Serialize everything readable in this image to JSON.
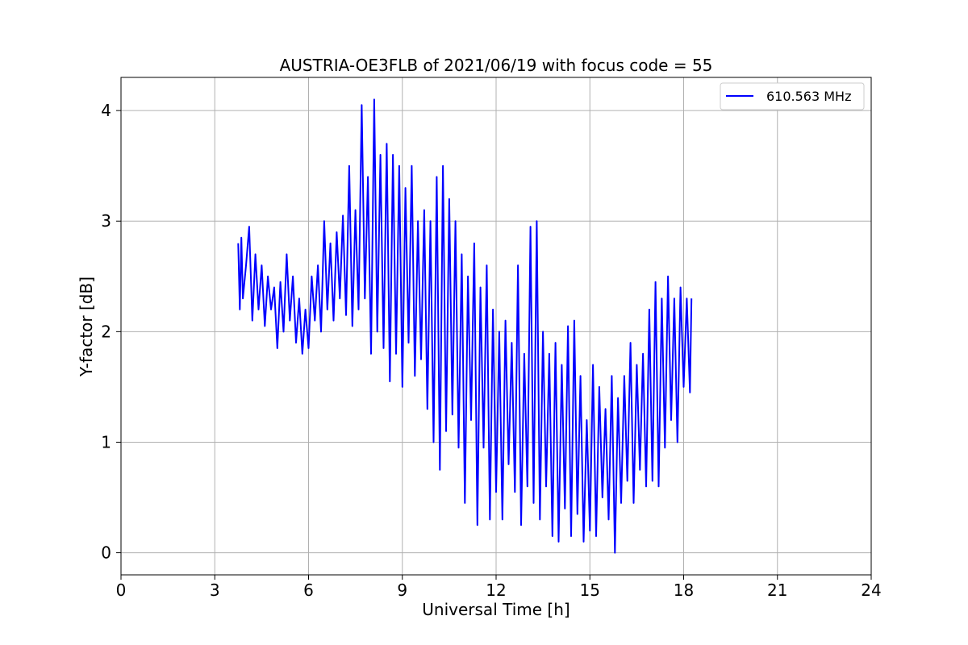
{
  "chart_data": {
    "type": "line",
    "title": "AUSTRIA-OE3FLB of 2021/06/19 with focus code = 55",
    "xlabel": "Universal Time [h]",
    "ylabel": "Y-factor [dB]",
    "xlim": [
      0,
      24
    ],
    "ylim": [
      -0.2,
      4.3
    ],
    "xticks": [
      0,
      3,
      6,
      9,
      12,
      15,
      18,
      21,
      24
    ],
    "yticks": [
      0,
      1,
      2,
      3,
      4
    ],
    "grid": true,
    "legend_position": "top-right",
    "series": [
      {
        "name": "610.563 MHz",
        "color": "#0000ff",
        "x": [
          3.75,
          3.8,
          3.85,
          3.9,
          4.0,
          4.1,
          4.2,
          4.3,
          4.4,
          4.5,
          4.6,
          4.7,
          4.8,
          4.9,
          5.0,
          5.1,
          5.2,
          5.3,
          5.4,
          5.5,
          5.6,
          5.7,
          5.8,
          5.9,
          6.0,
          6.1,
          6.2,
          6.3,
          6.4,
          6.5,
          6.6,
          6.7,
          6.8,
          6.9,
          7.0,
          7.1,
          7.2,
          7.3,
          7.4,
          7.5,
          7.6,
          7.7,
          7.8,
          7.9,
          8.0,
          8.1,
          8.2,
          8.3,
          8.4,
          8.5,
          8.6,
          8.7,
          8.8,
          8.9,
          9.0,
          9.1,
          9.2,
          9.3,
          9.4,
          9.5,
          9.6,
          9.7,
          9.8,
          9.9,
          10.0,
          10.1,
          10.2,
          10.3,
          10.4,
          10.5,
          10.6,
          10.7,
          10.8,
          10.9,
          11.0,
          11.1,
          11.2,
          11.3,
          11.4,
          11.5,
          11.6,
          11.7,
          11.8,
          11.9,
          12.0,
          12.1,
          12.2,
          12.3,
          12.4,
          12.5,
          12.6,
          12.7,
          12.8,
          12.9,
          13.0,
          13.1,
          13.2,
          13.3,
          13.4,
          13.5,
          13.6,
          13.7,
          13.8,
          13.9,
          14.0,
          14.1,
          14.2,
          14.3,
          14.4,
          14.5,
          14.6,
          14.7,
          14.8,
          14.9,
          15.0,
          15.1,
          15.2,
          15.3,
          15.4,
          15.5,
          15.6,
          15.7,
          15.8,
          15.9,
          16.0,
          16.1,
          16.2,
          16.3,
          16.4,
          16.5,
          16.6,
          16.7,
          16.8,
          16.9,
          17.0,
          17.1,
          17.2,
          17.3,
          17.4,
          17.5,
          17.6,
          17.7,
          17.8,
          17.9,
          18.0,
          18.1,
          18.2,
          18.25
        ],
        "y": [
          2.8,
          2.2,
          2.85,
          2.3,
          2.6,
          2.95,
          2.1,
          2.7,
          2.2,
          2.6,
          2.05,
          2.5,
          2.2,
          2.4,
          1.85,
          2.45,
          2.0,
          2.7,
          2.1,
          2.5,
          1.9,
          2.3,
          1.8,
          2.2,
          1.85,
          2.5,
          2.1,
          2.6,
          2.0,
          3.0,
          2.2,
          2.8,
          2.1,
          2.9,
          2.3,
          3.05,
          2.15,
          3.5,
          2.05,
          3.1,
          2.2,
          4.05,
          2.3,
          3.4,
          1.8,
          4.1,
          2.0,
          3.6,
          1.85,
          3.7,
          1.55,
          3.6,
          1.8,
          3.5,
          1.5,
          3.3,
          1.9,
          3.5,
          1.6,
          3.0,
          1.75,
          3.1,
          1.3,
          3.0,
          1.0,
          3.4,
          0.75,
          3.5,
          1.1,
          3.2,
          1.25,
          3.0,
          0.95,
          2.7,
          0.45,
          2.5,
          1.2,
          2.8,
          0.25,
          2.4,
          0.95,
          2.6,
          0.3,
          2.2,
          0.55,
          2.0,
          0.3,
          2.1,
          0.8,
          1.9,
          0.55,
          2.6,
          0.25,
          1.8,
          0.6,
          2.95,
          0.45,
          3.0,
          0.3,
          2.0,
          0.6,
          1.8,
          0.15,
          1.9,
          0.1,
          1.7,
          0.4,
          2.05,
          0.15,
          2.1,
          0.35,
          1.6,
          0.1,
          1.2,
          0.2,
          1.7,
          0.15,
          1.5,
          0.5,
          1.3,
          0.3,
          1.6,
          0.0,
          1.4,
          0.45,
          1.6,
          0.65,
          1.9,
          0.45,
          1.7,
          0.75,
          1.8,
          0.6,
          2.2,
          0.65,
          2.45,
          0.6,
          2.3,
          0.95,
          2.5,
          1.2,
          2.3,
          1.0,
          2.4,
          1.5,
          2.3,
          1.45,
          2.3
        ]
      }
    ]
  }
}
